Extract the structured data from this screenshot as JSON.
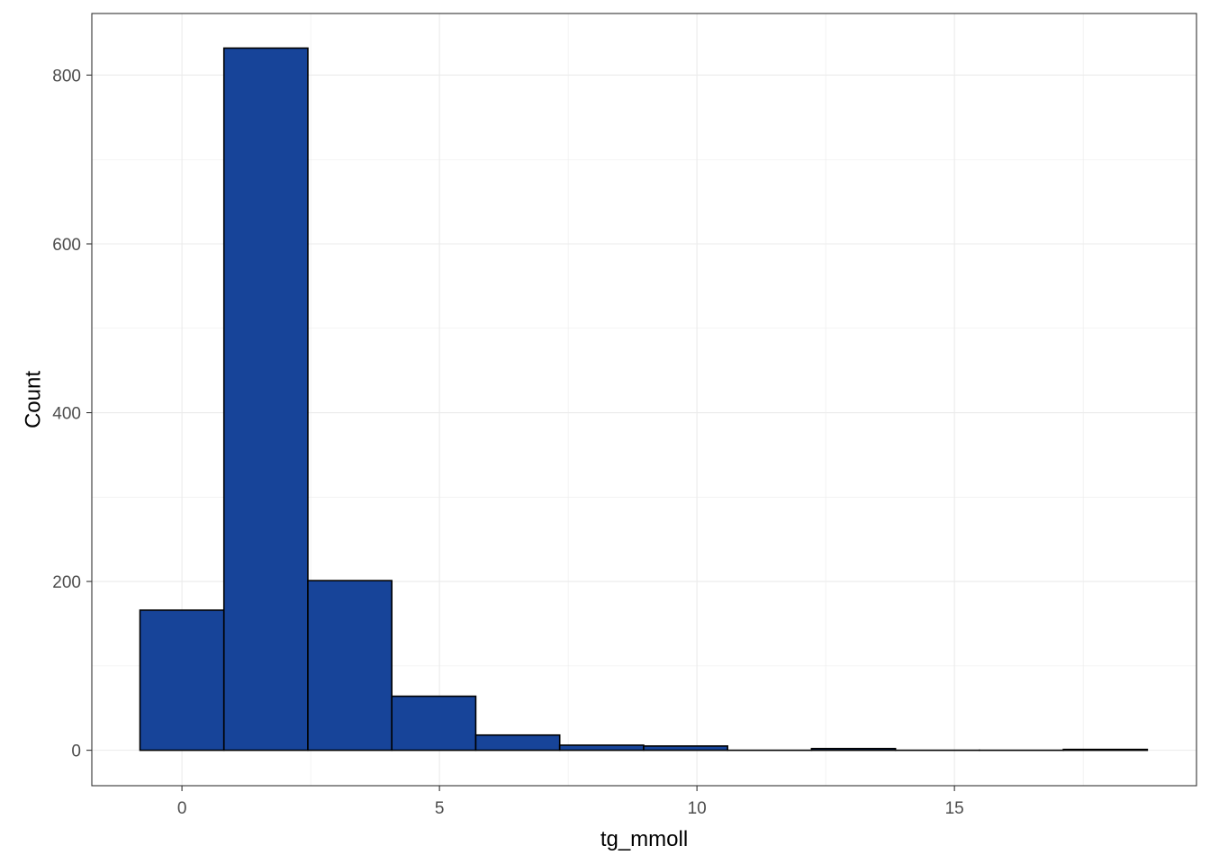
{
  "chart_data": {
    "type": "bar",
    "subtype": "histogram",
    "xlabel": "tg_mmoll",
    "ylabel": "Count",
    "bin_width": 1.63,
    "bins": [
      {
        "x_start": -0.815,
        "x_end": 0.815,
        "count": 166
      },
      {
        "x_start": 0.815,
        "x_end": 2.445,
        "count": 832
      },
      {
        "x_start": 2.445,
        "x_end": 4.075,
        "count": 201
      },
      {
        "x_start": 4.075,
        "x_end": 5.705,
        "count": 64
      },
      {
        "x_start": 5.705,
        "x_end": 7.335,
        "count": 18
      },
      {
        "x_start": 7.335,
        "x_end": 8.965,
        "count": 6
      },
      {
        "x_start": 8.965,
        "x_end": 10.595,
        "count": 5
      },
      {
        "x_start": 10.595,
        "x_end": 12.225,
        "count": 0
      },
      {
        "x_start": 12.225,
        "x_end": 13.855,
        "count": 2
      },
      {
        "x_start": 13.855,
        "x_end": 15.485,
        "count": 0
      },
      {
        "x_start": 15.485,
        "x_end": 17.115,
        "count": 0
      },
      {
        "x_start": 17.115,
        "x_end": 18.745,
        "count": 1
      }
    ],
    "xlim": [
      -1.75,
      19.7
    ],
    "ylim": [
      -42,
      873
    ],
    "x_ticks": [
      0,
      5,
      10,
      15
    ],
    "x_minor_ticks": [
      2.5,
      7.5,
      12.5,
      17.5
    ],
    "y_ticks": [
      0,
      200,
      400,
      600,
      800
    ],
    "y_minor_ticks": [
      100,
      300,
      500,
      700
    ],
    "grid": true,
    "legend": "none",
    "colors": {
      "bar_fill": "#174499",
      "bar_outline": "#000000",
      "grid": "#ebebeb",
      "panel_border": "#333333",
      "tick_label": "#4d4d4d"
    }
  }
}
